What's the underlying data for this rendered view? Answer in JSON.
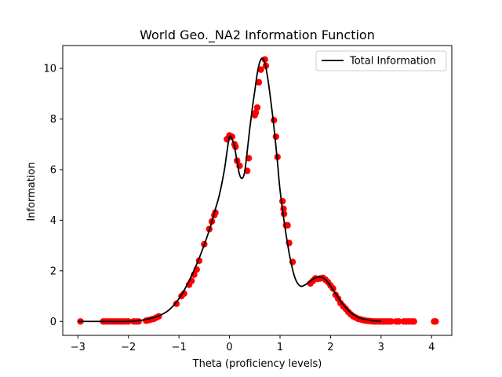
{
  "chart_data": {
    "type": "scatter",
    "title": "World Geo._NA2 Information Function",
    "xlabel": "Theta (proficiency levels)",
    "ylabel": "Information",
    "xlim": [
      -3.3,
      4.4
    ],
    "ylim": [
      -0.55,
      10.9
    ],
    "x_ticks": [
      -3,
      -2,
      -1,
      0,
      1,
      2,
      3,
      4
    ],
    "x_tick_labels": [
      "−3",
      "−2",
      "−1",
      "0",
      "1",
      "2",
      "3",
      "4"
    ],
    "y_ticks": [
      0,
      2,
      4,
      6,
      8,
      10
    ],
    "y_tick_labels": [
      "0",
      "2",
      "4",
      "6",
      "8",
      "10"
    ],
    "grid": false,
    "legend": {
      "position": "top-right",
      "entries": [
        "Total Information"
      ]
    },
    "series": [
      {
        "name": "Total Information",
        "kind": "line",
        "color": "#000000",
        "x": [
          -3.0,
          -2.5,
          -2.0,
          -1.8,
          -1.6,
          -1.4,
          -1.2,
          -1.0,
          -0.8,
          -0.6,
          -0.4,
          -0.3,
          -0.2,
          -0.1,
          -0.05,
          0.0,
          0.05,
          0.1,
          0.15,
          0.2,
          0.25,
          0.3,
          0.35,
          0.4,
          0.45,
          0.5,
          0.55,
          0.6,
          0.65,
          0.7,
          0.75,
          0.8,
          0.85,
          0.9,
          0.95,
          1.0,
          1.1,
          1.2,
          1.3,
          1.4,
          1.5,
          1.6,
          1.7,
          1.8,
          1.9,
          2.0,
          2.1,
          2.2,
          2.3,
          2.4,
          2.5,
          2.6,
          2.8,
          3.0
        ],
        "y": [
          0.0,
          0.0,
          0.0,
          0.03,
          0.1,
          0.22,
          0.45,
          0.9,
          1.6,
          2.5,
          3.6,
          4.3,
          5.0,
          6.0,
          6.7,
          7.3,
          7.2,
          6.9,
          6.3,
          5.8,
          5.65,
          5.9,
          6.7,
          7.6,
          8.4,
          9.1,
          9.8,
          10.25,
          10.4,
          10.2,
          9.7,
          9.0,
          8.2,
          7.3,
          6.3,
          5.2,
          3.7,
          2.5,
          1.7,
          1.4,
          1.45,
          1.6,
          1.72,
          1.75,
          1.65,
          1.4,
          1.1,
          0.8,
          0.55,
          0.35,
          0.22,
          0.12,
          0.04,
          0.01
        ]
      },
      {
        "name": "",
        "kind": "points",
        "color": "#ff0000",
        "x": [
          -2.95,
          -2.5,
          -2.45,
          -2.4,
          -2.35,
          -2.3,
          -2.25,
          -2.2,
          -2.15,
          -2.1,
          -2.05,
          -2.0,
          -1.9,
          -1.85,
          -1.8,
          -1.65,
          -1.6,
          -1.55,
          -1.5,
          -1.45,
          -1.4,
          -1.05,
          -0.95,
          -0.9,
          -0.8,
          -0.75,
          -0.7,
          -0.65,
          -0.6,
          -0.5,
          -0.4,
          -0.35,
          -0.3,
          -0.28,
          -0.05,
          0.0,
          0.05,
          0.1,
          0.12,
          0.15,
          0.2,
          0.35,
          0.38,
          0.5,
          0.52,
          0.55,
          0.58,
          0.62,
          0.7,
          0.72,
          0.88,
          0.92,
          0.95,
          1.05,
          1.07,
          1.08,
          1.12,
          1.15,
          1.18,
          1.25,
          1.6,
          1.65,
          1.7,
          1.75,
          1.8,
          1.85,
          1.9,
          1.95,
          2.0,
          2.05,
          2.1,
          2.15,
          2.2,
          2.25,
          2.3,
          2.35,
          2.4,
          2.45,
          2.5,
          2.55,
          2.6,
          2.65,
          2.7,
          2.75,
          2.8,
          2.85,
          2.9,
          2.95,
          3.0,
          3.05,
          3.1,
          3.15,
          3.2,
          3.3,
          3.35,
          3.45,
          3.5,
          3.55,
          3.6,
          3.65,
          4.05,
          4.08
        ],
        "y": [
          0.0,
          0.0,
          0.0,
          0.0,
          0.0,
          0.0,
          0.0,
          0.0,
          0.0,
          0.0,
          0.0,
          0.0,
          0.0,
          0.0,
          0.0,
          0.03,
          0.05,
          0.08,
          0.1,
          0.15,
          0.2,
          0.7,
          1.0,
          1.1,
          1.45,
          1.6,
          1.85,
          2.05,
          2.4,
          3.05,
          3.65,
          3.95,
          4.2,
          4.3,
          7.2,
          7.35,
          7.3,
          7.0,
          6.9,
          6.35,
          6.15,
          5.95,
          6.45,
          8.15,
          8.25,
          8.45,
          9.45,
          9.95,
          10.35,
          10.1,
          7.95,
          7.3,
          6.5,
          4.75,
          4.45,
          4.25,
          3.8,
          3.8,
          3.1,
          2.35,
          1.5,
          1.6,
          1.7,
          1.68,
          1.7,
          1.72,
          1.65,
          1.55,
          1.42,
          1.3,
          1.05,
          0.9,
          0.72,
          0.6,
          0.5,
          0.38,
          0.28,
          0.2,
          0.15,
          0.1,
          0.08,
          0.05,
          0.03,
          0.02,
          0.01,
          0.0,
          0.0,
          0.0,
          0.0,
          0.0,
          0.0,
          0.0,
          0.0,
          0.0,
          0.0,
          0.0,
          0.0,
          0.0,
          0.0,
          0.0,
          0.0,
          0.0
        ]
      }
    ]
  }
}
